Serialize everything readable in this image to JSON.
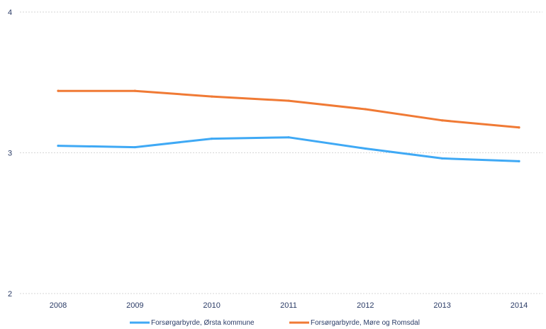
{
  "chart_data": {
    "type": "line",
    "title": "",
    "xlabel": "",
    "ylabel": "",
    "categories": [
      "2008",
      "2009",
      "2010",
      "2011",
      "2012",
      "2013",
      "2014"
    ],
    "ylim": [
      2,
      4
    ],
    "yticks": [
      "2",
      "3",
      "4"
    ],
    "grid": true,
    "legend_position": "bottom",
    "series": [
      {
        "name": "Forsørgarbyrde, Ørsta kommune",
        "color": "#3fa9f5",
        "values": [
          3.05,
          3.04,
          3.1,
          3.11,
          3.03,
          2.96,
          2.94
        ]
      },
      {
        "name": "Forsørgarbyrde, Møre og Romsdal",
        "color": "#f07a35",
        "values": [
          3.44,
          3.44,
          3.4,
          3.37,
          3.31,
          3.23,
          3.18
        ]
      }
    ]
  }
}
